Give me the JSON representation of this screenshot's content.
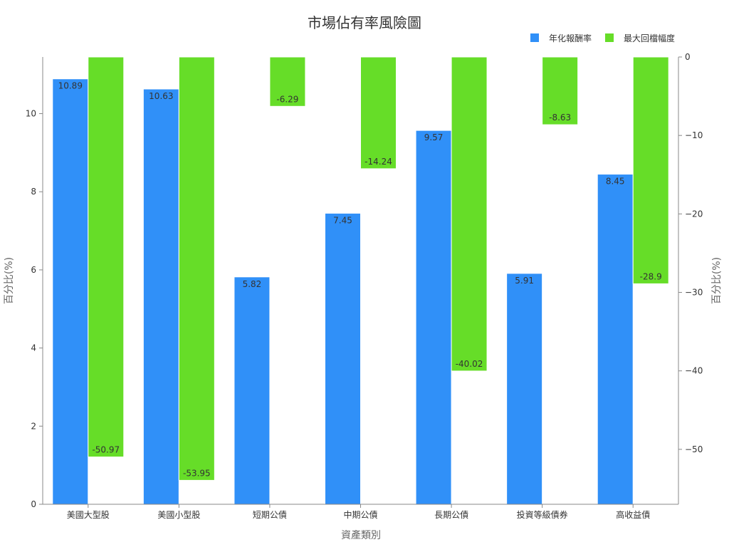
{
  "chart_data": {
    "type": "bar",
    "title": "市場佔有率風險圖",
    "xlabel": "資產類別",
    "ylabel_left": "百分比(%)",
    "ylabel_right": "百分比(%)",
    "categories": [
      "美國大型股",
      "美國小型股",
      "短期公債",
      "中期公債",
      "長期公債",
      "投資等級債券",
      "高收益債"
    ],
    "series": [
      {
        "name": "年化報酬率",
        "axis": "left",
        "color": "#3090f8",
        "values": [
          10.89,
          10.63,
          5.82,
          7.45,
          9.57,
          5.91,
          8.45
        ]
      },
      {
        "name": "最大回檔幅度",
        "axis": "right",
        "color": "#66dd28",
        "values": [
          -50.97,
          -53.95,
          -6.29,
          -14.24,
          -40.02,
          -8.63,
          -28.9
        ]
      }
    ],
    "ylim_left": [
      0,
      11.45
    ],
    "ylim_right": [
      -57,
      0
    ],
    "yticks_left": [
      "0",
      "2",
      "4",
      "6",
      "8",
      "10"
    ],
    "yticks_right": [
      "0",
      "−10",
      "−20",
      "−30",
      "−40",
      "−50"
    ],
    "legend": "top-right",
    "grid": false
  }
}
